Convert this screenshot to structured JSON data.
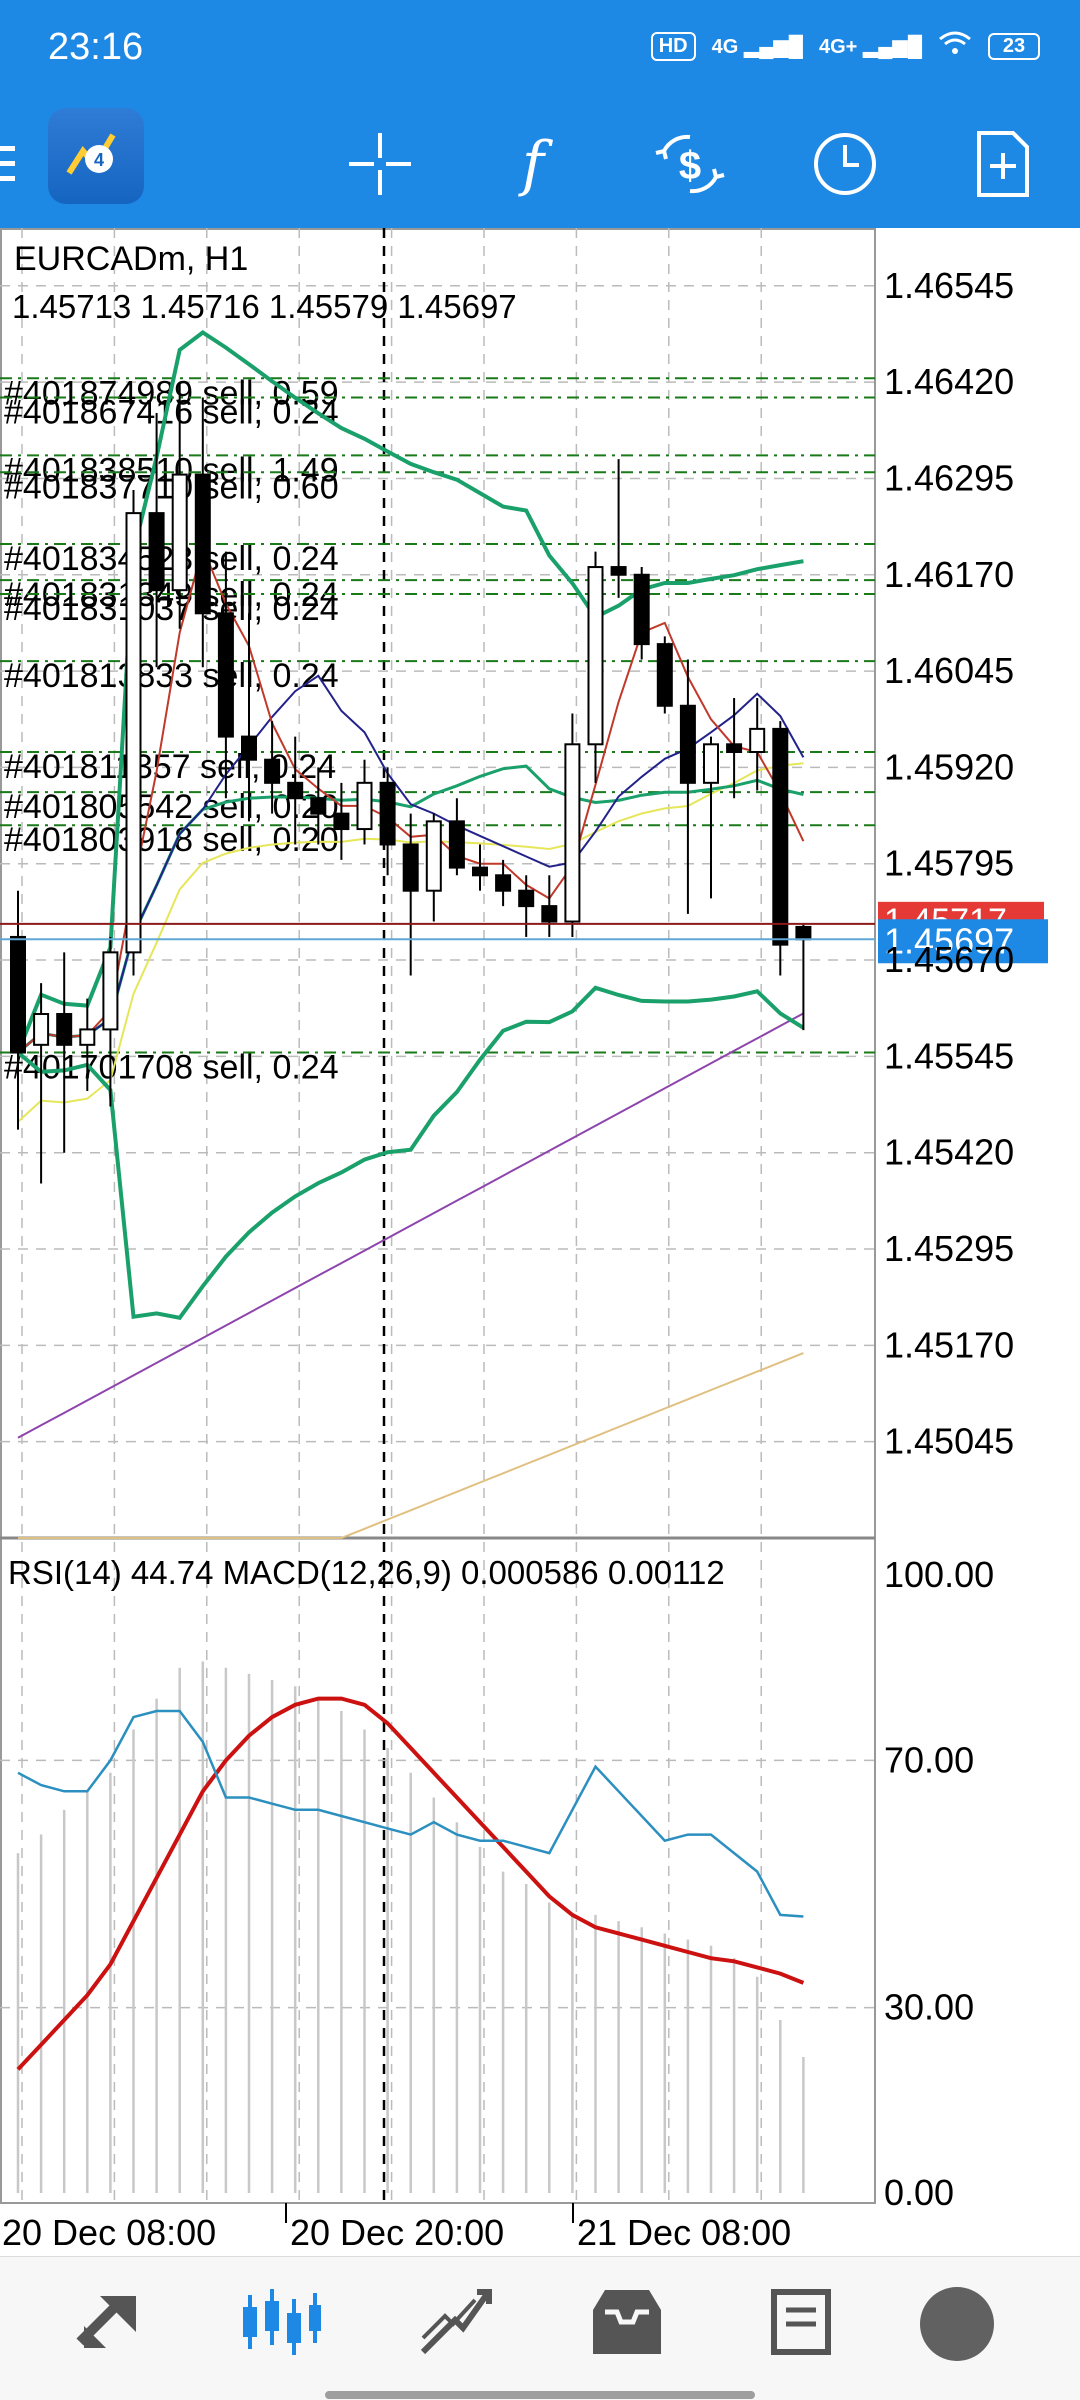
{
  "status_bar": {
    "time": "23:16",
    "hd": "HD",
    "net1": "4G",
    "net2": "4G+",
    "battery": "23"
  },
  "toolbar": {
    "icons": [
      "menu-icon",
      "metatrader-logo",
      "crosshair-icon",
      "indicators-icon",
      "trade-icon",
      "timeframe-icon",
      "new-order-icon"
    ],
    "indicators_glyph": "f"
  },
  "chart": {
    "symbol_label": "EURCADm, H1",
    "ohlc_label": "1.45713 1.45716 1.45579 1.45697",
    "current_price": "1.45697",
    "ask_price": "1.45717",
    "price_axis": [
      "1.46545",
      "1.46420",
      "1.46295",
      "1.46170",
      "1.46045",
      "1.45920",
      "1.45795",
      "1.45670",
      "1.45545",
      "1.45420",
      "1.45295",
      "1.45170",
      "1.45045"
    ],
    "orders": [
      {
        "text": "#401874989 sell, 0.59",
        "price": 1.46425
      },
      {
        "text": "#401867416 sell, 0.24",
        "price": 1.464
      },
      {
        "text": "#401838510 sell, 1.49",
        "price": 1.46325
      },
      {
        "text": "#401837710 sell, 0.60",
        "price": 1.46303
      },
      {
        "text": "#401834523 sell, 0.24",
        "price": 1.4621
      },
      {
        "text": "#401831349 sell, 0.24",
        "price": 1.46163
      },
      {
        "text": "#401831037 sell, 0.24",
        "price": 1.46145
      },
      {
        "text": "#401813833 sell, 0.24",
        "price": 1.46058
      },
      {
        "text": "#401811357 sell, 0.24",
        "price": 1.4594
      },
      {
        "text": "#401805542 sell, 0.20",
        "price": 1.45888
      },
      {
        "text": "#401803918 sell, 0.20",
        "price": 1.45845
      },
      {
        "text": "#401701708 sell, 0.24",
        "price": 1.4555
      }
    ],
    "time_axis": [
      "20 Dec 08:00",
      "20 Dec 20:00",
      "21 Dec 08:00"
    ],
    "indicator_label": "RSI(14) 44.74 MACD(12,26,9) 0.000586 0.00112",
    "indicator_axis": [
      "100.00",
      "70.00",
      "30.00",
      "0.00"
    ],
    "colors": {
      "bid_line": "#8b1a1a",
      "current_line": "#5fa8d3",
      "ask_box": "#e53935",
      "bid_box": "#1e88e5",
      "bands": "#1aa06a",
      "ma_fast": "#c0392b",
      "ma_navy": "#22228a",
      "ma_yellow": "#e6e65a",
      "ma_purple": "#8e44ad",
      "ma_tan": "#e0c080",
      "rsi": "#2b8fc0",
      "macd_signal": "#cc1111",
      "order_line": "#1a7a1a"
    }
  },
  "chart_data": {
    "type": "candlestick",
    "symbol": "EURCADm",
    "timeframe": "H1",
    "ohlc": [
      [
        1.457,
        1.4576,
        1.4545,
        1.4555
      ],
      [
        1.4556,
        1.4564,
        1.4538,
        1.456
      ],
      [
        1.456,
        1.4568,
        1.4542,
        1.4556
      ],
      [
        1.4556,
        1.4562,
        1.455,
        1.4558
      ],
      [
        1.4558,
        1.457,
        1.4548,
        1.4568
      ],
      [
        1.4568,
        1.4628,
        1.4565,
        1.4625
      ],
      [
        1.4625,
        1.4638,
        1.4605,
        1.4615
      ],
      [
        1.4615,
        1.4642,
        1.461,
        1.463
      ],
      [
        1.463,
        1.464,
        1.4605,
        1.4612
      ],
      [
        1.4612,
        1.462,
        1.4588,
        1.4596
      ],
      [
        1.4596,
        1.4612,
        1.4585,
        1.4593
      ],
      [
        1.4593,
        1.4598,
        1.4586,
        1.459
      ],
      [
        1.459,
        1.4596,
        1.4582,
        1.4588
      ],
      [
        1.4588,
        1.4592,
        1.4582,
        1.4586
      ],
      [
        1.4586,
        1.459,
        1.458,
        1.4584
      ],
      [
        1.4584,
        1.4593,
        1.4582,
        1.459
      ],
      [
        1.459,
        1.4592,
        1.4578,
        1.4582
      ],
      [
        1.4582,
        1.4586,
        1.4565,
        1.4576
      ],
      [
        1.4576,
        1.4586,
        1.4572,
        1.4585
      ],
      [
        1.4585,
        1.4588,
        1.4578,
        1.4579
      ],
      [
        1.4579,
        1.4582,
        1.4576,
        1.4578
      ],
      [
        1.4578,
        1.458,
        1.4574,
        1.4576
      ],
      [
        1.4576,
        1.4578,
        1.457,
        1.4574
      ],
      [
        1.4574,
        1.4578,
        1.457,
        1.4572
      ],
      [
        1.4572,
        1.4599,
        1.457,
        1.4595
      ],
      [
        1.4595,
        1.462,
        1.459,
        1.4618
      ],
      [
        1.4618,
        1.4632,
        1.4614,
        1.4617
      ],
      [
        1.4617,
        1.4618,
        1.4606,
        1.4608
      ],
      [
        1.4608,
        1.4609,
        1.4599,
        1.46
      ],
      [
        1.46,
        1.4606,
        1.4573,
        1.459
      ],
      [
        1.459,
        1.4596,
        1.4575,
        1.4595
      ],
      [
        1.4595,
        1.4601,
        1.4588,
        1.4594
      ],
      [
        1.4594,
        1.4601,
        1.4589,
        1.4597
      ],
      [
        1.4597,
        1.4598,
        1.4565,
        1.4569
      ],
      [
        1.45713,
        1.45716,
        1.45579,
        1.45697
      ]
    ],
    "rsi": [
      68,
      66,
      65,
      65,
      70,
      77,
      78,
      78,
      73,
      64,
      64,
      63,
      62,
      62,
      61,
      60,
      59,
      58,
      60,
      58,
      57,
      57,
      56,
      55,
      62,
      69,
      65,
      61,
      57,
      58,
      58,
      55,
      52,
      45,
      44.74
    ],
    "macd_signal": [
      20,
      24,
      28,
      32,
      37,
      44,
      51,
      58,
      65,
      70,
      74,
      77,
      79,
      80,
      80,
      79,
      76,
      72,
      68,
      64,
      60,
      56,
      52,
      48,
      45,
      43,
      42,
      41,
      40,
      39,
      38,
      37.5,
      36.5,
      35.5,
      34
    ],
    "macd_histogram": [
      55,
      58,
      62,
      65,
      68,
      75,
      80,
      85,
      86,
      85,
      84,
      83,
      82,
      80,
      78,
      75,
      72,
      68,
      64,
      60,
      56,
      52,
      50,
      47,
      45,
      45,
      44,
      43,
      42,
      41,
      40,
      38,
      35,
      28,
      22
    ],
    "xlabels": [
      "20 Dec 08:00",
      "20 Dec 20:00",
      "21 Dec 08:00"
    ],
    "ylim_price": [
      1.4492,
      1.4662
    ],
    "ylim_rsi": [
      0,
      100
    ]
  }
}
